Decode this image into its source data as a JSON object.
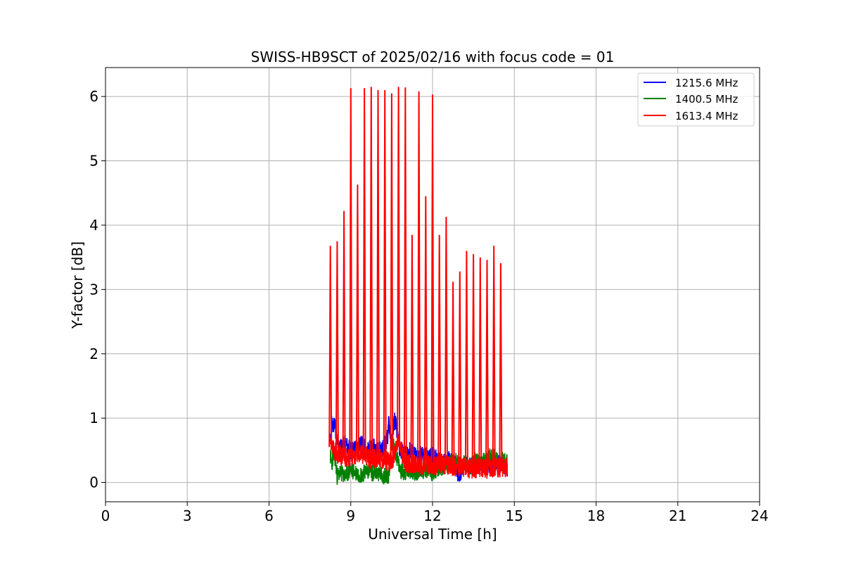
{
  "chart_data": {
    "type": "line",
    "title": "SWISS-HB9SCT of 2025/02/16 with focus code = 01",
    "xlabel": "Universal Time [h]",
    "ylabel": "Y-factor [dB]",
    "xlim": [
      0,
      24
    ],
    "ylim": [
      -0.3,
      6.45
    ],
    "x_ticks": [
      0,
      3,
      6,
      9,
      12,
      15,
      18,
      21,
      24
    ],
    "y_ticks": [
      0,
      1,
      2,
      3,
      4,
      5,
      6
    ],
    "grid": true,
    "legend_position": "top-right",
    "series": [
      {
        "name": "1215.6 MHz",
        "color": "#0000ff",
        "x": [
          8.25,
          8.3,
          8.35,
          8.4,
          8.5,
          8.6,
          8.8,
          9.0,
          9.2,
          9.4,
          9.6,
          9.8,
          10.0,
          10.2,
          10.35,
          10.4,
          10.5,
          10.6,
          10.7,
          10.8,
          11.0,
          11.2,
          11.4,
          11.6,
          11.8,
          12.0,
          12.2,
          12.4,
          12.6,
          12.8,
          13.0,
          13.2,
          13.4,
          13.6,
          13.8,
          14.0,
          14.2,
          14.4,
          14.6,
          14.75
        ],
        "y": [
          0.6,
          0.95,
          0.8,
          1.0,
          0.6,
          0.55,
          0.6,
          0.5,
          0.55,
          0.6,
          0.5,
          0.55,
          0.5,
          0.55,
          0.7,
          0.95,
          0.6,
          1.0,
          0.8,
          0.5,
          0.45,
          0.5,
          0.4,
          0.45,
          0.4,
          0.42,
          0.35,
          0.3,
          0.35,
          0.3,
          0.05,
          0.3,
          0.25,
          0.3,
          0.25,
          0.3,
          0.25,
          0.3,
          0.25,
          0.2
        ]
      },
      {
        "name": "1400.5 MHz",
        "color": "#008000",
        "x": [
          8.25,
          8.3,
          8.4,
          8.5,
          8.6,
          8.8,
          9.0,
          9.2,
          9.4,
          9.6,
          9.8,
          10.0,
          10.2,
          10.4,
          10.5,
          10.6,
          10.8,
          11.0,
          11.2,
          11.4,
          11.6,
          11.8,
          12.0,
          12.2,
          12.4,
          12.6,
          12.8,
          13.0,
          13.2,
          13.4,
          13.6,
          13.8,
          14.0,
          14.2,
          14.4,
          14.6,
          14.75
        ],
        "y": [
          0.4,
          0.3,
          0.45,
          0.1,
          0.15,
          0.1,
          0.2,
          0.15,
          0.12,
          0.2,
          0.15,
          0.15,
          0.1,
          0.12,
          0.6,
          0.55,
          0.2,
          0.15,
          0.2,
          0.15,
          0.2,
          0.18,
          0.15,
          0.2,
          0.25,
          0.3,
          0.35,
          0.25,
          0.3,
          0.25,
          0.35,
          0.3,
          0.35,
          0.45,
          0.3,
          0.35,
          0.3
        ]
      },
      {
        "name": "1613.4 MHz",
        "color": "#ff0000",
        "x": [
          8.25,
          8.5,
          8.75,
          9.0,
          9.25,
          9.5,
          9.75,
          10.0,
          10.25,
          10.5,
          10.75,
          11.0,
          11.25,
          11.5,
          11.75,
          12.0,
          12.25,
          12.5,
          12.75,
          13.0,
          13.25,
          13.5,
          13.75,
          14.0,
          14.25,
          14.5
        ],
        "y": [
          3.68,
          3.75,
          4.22,
          6.13,
          4.63,
          6.13,
          6.15,
          6.1,
          6.1,
          6.05,
          6.15,
          6.14,
          3.85,
          6.08,
          4.45,
          6.03,
          3.85,
          4.13,
          3.12,
          3.28,
          3.6,
          3.55,
          3.5,
          3.46,
          3.68,
          3.41
        ],
        "baseline": [
          0.55,
          0.45,
          0.4,
          0.4,
          0.45,
          0.45,
          0.35,
          0.4,
          0.35,
          0.3,
          0.65,
          0.3,
          0.3,
          0.25,
          0.3,
          0.25,
          0.3,
          0.28,
          0.25,
          0.25,
          0.22,
          0.22,
          0.22,
          0.2,
          0.25,
          0.22
        ]
      }
    ]
  }
}
